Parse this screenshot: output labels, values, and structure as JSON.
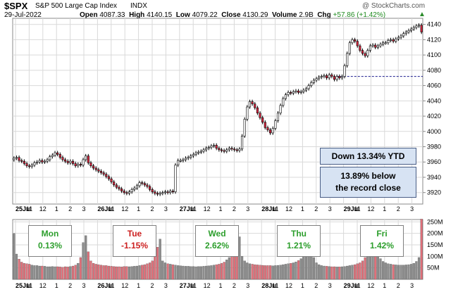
{
  "header": {
    "symbol": "$SPX",
    "name": "S&P 500 Large Cap Index",
    "exchange": "INDX",
    "watermark": "@ StockCharts.com",
    "date": "29-Jul-2022",
    "open_label": "Open",
    "open": "4087.33",
    "high_label": "High",
    "high": "4140.15",
    "low_label": "Low",
    "low": "4079.22",
    "close_label": "Close",
    "close": "4130.29",
    "volume_label": "Volume",
    "volume": "2.9B",
    "chg_label": "Chg",
    "chg": "+57.86 (+1.42%)"
  },
  "annotations": {
    "ytd": "Down 13.34% YTD",
    "record_line1": "13.89% below",
    "record_line2": "the record close"
  },
  "days": [
    {
      "name": "Mon",
      "pct": "0.13%",
      "color": "#2c9e2c"
    },
    {
      "name": "Tue",
      "pct": "-1.15%",
      "color": "#cc1f1f"
    },
    {
      "name": "Wed",
      "pct": "2.62%",
      "color": "#2c9e2c"
    },
    {
      "name": "Thu",
      "pct": "1.21%",
      "color": "#2c9e2c"
    },
    {
      "name": "Fri",
      "pct": "1.42%",
      "color": "#2c9e2c"
    }
  ],
  "colors": {
    "up_candle": "#ffffff",
    "down_candle": "#d8263f",
    "wick": "#000000",
    "vol_up": "#8c8c8c",
    "vol_down": "#e0707a",
    "grid": "#d9d9d9",
    "last_close_line": "#1a1a8c"
  },
  "chart_data": [
    {
      "type": "candlestick",
      "title": "$SPX S&P 500 Large Cap Index INDX",
      "interval": "hourly intraday",
      "ylim": [
        3905,
        4148
      ],
      "y_ticks": [
        3920,
        3940,
        3960,
        3980,
        4000,
        4020,
        4040,
        4060,
        4080,
        4100,
        4120,
        4140
      ],
      "x_tick_labels": [
        "25Jul",
        "11",
        "12",
        "1",
        "2",
        "3",
        "26Jul",
        "11",
        "12",
        "1",
        "2",
        "3",
        "27Jul",
        "11",
        "12",
        "1",
        "2",
        "3",
        "28Jul",
        "11",
        "12",
        "1",
        "2",
        "3",
        "29Jul",
        "11",
        "12",
        "1",
        "2",
        "3"
      ],
      "reference_line": 4072,
      "grid": true,
      "close_series": [
        3965,
        3966,
        3962,
        3961,
        3958,
        3955,
        3954,
        3956,
        3959,
        3960,
        3962,
        3960,
        3961,
        3963,
        3967,
        3969,
        3972,
        3970,
        3966,
        3963,
        3961,
        3959,
        3961,
        3958,
        3955,
        3957,
        3956,
        3963,
        3968,
        3959,
        3955,
        3952,
        3950,
        3948,
        3946,
        3944,
        3941,
        3938,
        3934,
        3930,
        3927,
        3925,
        3922,
        3920,
        3919,
        3921,
        3924,
        3926,
        3929,
        3933,
        3932,
        3930,
        3928,
        3924,
        3921,
        3919,
        3918,
        3919,
        3920,
        3921,
        3920,
        3922,
        3921,
        3956,
        3962,
        3962,
        3963,
        3965,
        3966,
        3968,
        3970,
        3972,
        3973,
        3974,
        3976,
        3978,
        3979,
        3981,
        3982,
        3978,
        3976,
        3975,
        3974,
        3976,
        3978,
        3977,
        3976,
        3975,
        3977,
        3994,
        4016,
        4032,
        4039,
        4036,
        4031,
        4024,
        4018,
        4012,
        4005,
        4002,
        3998,
        4004,
        4014,
        4024,
        4034,
        4043,
        4048,
        4051,
        4050,
        4052,
        4053,
        4051,
        4052,
        4054,
        4056,
        4060,
        4064,
        4067,
        4069,
        4071,
        4072,
        4073,
        4070,
        4074,
        4072,
        4068,
        4072,
        4070,
        4072,
        4086,
        4102,
        4116,
        4120,
        4118,
        4112,
        4106,
        4102,
        4099,
        4106,
        4112,
        4113,
        4110,
        4112,
        4114,
        4116,
        4116,
        4119,
        4120,
        4118,
        4121,
        4123,
        4125,
        4128,
        4130,
        4132,
        4134,
        4136,
        4138,
        4139,
        4130
      ]
    },
    {
      "type": "bar",
      "title": "Volume",
      "ylim": [
        0,
        260
      ],
      "y_unit": "M",
      "y_ticks": [
        "50M",
        "100M",
        "150M",
        "200M",
        "250M"
      ],
      "values": [
        200,
        110,
        88,
        75,
        70,
        68,
        66,
        62,
        60,
        60,
        58,
        58,
        57,
        55,
        55,
        56,
        55,
        55,
        54,
        53,
        55,
        54,
        56,
        58,
        62,
        70,
        95,
        160,
        190,
        120,
        80,
        70,
        66,
        64,
        62,
        60,
        60,
        58,
        57,
        56,
        55,
        55,
        54,
        56,
        56,
        55,
        56,
        57,
        58,
        60,
        62,
        64,
        68,
        72,
        80,
        100,
        140,
        175,
        80,
        72,
        68,
        66,
        64,
        62,
        60,
        59,
        58,
        57,
        57,
        56,
        56,
        55,
        56,
        56,
        57,
        58,
        59,
        60,
        62,
        64,
        66,
        70,
        75,
        85,
        95,
        120,
        160,
        225,
        185,
        100,
        80,
        72,
        68,
        66,
        64,
        63,
        62,
        61,
        60,
        60,
        60,
        59,
        60,
        61,
        62,
        64,
        66,
        68,
        70,
        72,
        76,
        82,
        90,
        105,
        150,
        195,
        150,
        95,
        72,
        64,
        60,
        58,
        57,
        56,
        55,
        55,
        54,
        54,
        55,
        56,
        58,
        60,
        62,
        64,
        68,
        72,
        80,
        95,
        125,
        155,
        205,
        175,
        120,
        90,
        78,
        72,
        68,
        66,
        64,
        63,
        62,
        62,
        62,
        63,
        64,
        66,
        70,
        78,
        95,
        262
      ]
    }
  ]
}
